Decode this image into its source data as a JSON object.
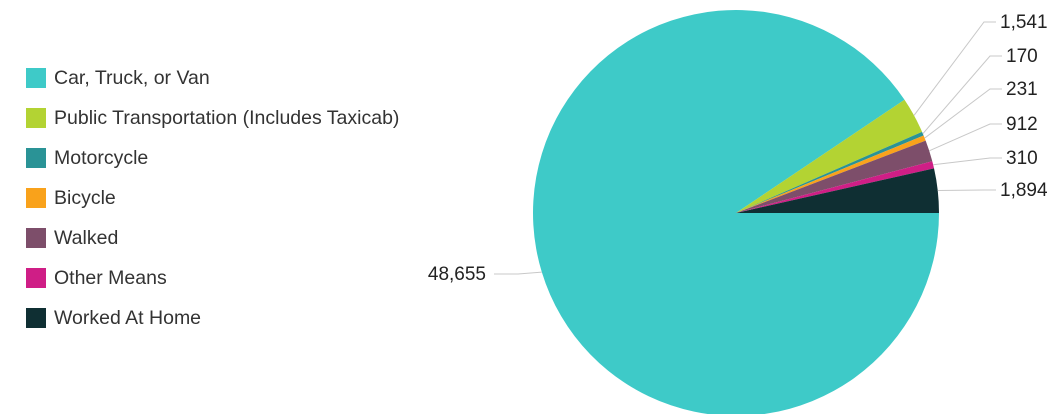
{
  "chart_data": {
    "type": "pie",
    "title": "",
    "legend_position": "left",
    "series": [
      {
        "name": "",
        "values": [
          48655,
          1541,
          170,
          231,
          912,
          310,
          1894
        ],
        "labels": [
          "48,655",
          "1,541",
          "170",
          "231",
          "912",
          "310",
          "1,894"
        ]
      }
    ],
    "categories": [
      "Car, Truck, or Van",
      "Public Transportation (Includes Taxicab)",
      "Motorcycle",
      "Bicycle",
      "Walked",
      "Other Means",
      "Worked At Home"
    ],
    "colors": [
      "#3ecac8",
      "#b3d333",
      "#2a9396",
      "#f9a21b",
      "#7d4e6a",
      "#cf1e86",
      "#0f2f33"
    ]
  }
}
